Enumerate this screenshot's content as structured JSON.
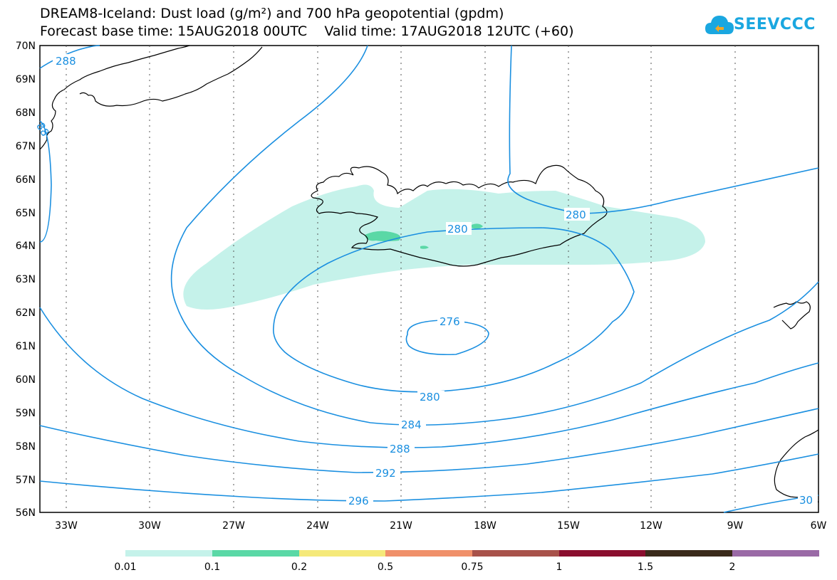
{
  "title": {
    "line1": "DREAM8-Iceland: Dust load (g/m²) and 700 hPa geopotential (gpdm)",
    "line2": "Forecast base time: 15AUG2018 00UTC    Valid time: 17AUG2018 12UTC (+60)"
  },
  "logo": {
    "text": "SEEVCCC",
    "icon": "cloud-icon"
  },
  "axes": {
    "lat_labels": [
      "70N",
      "69N",
      "68N",
      "67N",
      "66N",
      "65N",
      "64N",
      "63N",
      "62N",
      "61N",
      "60N",
      "59N",
      "58N",
      "57N",
      "56N"
    ],
    "lon_labels": [
      "33W",
      "30W",
      "27W",
      "24W",
      "21W",
      "18W",
      "15W",
      "12W",
      "9W",
      "6W"
    ]
  },
  "contour_labels": [
    "288",
    "88",
    "280",
    "280",
    "276",
    "280",
    "284",
    "288",
    "292",
    "296",
    "30"
  ],
  "colorbar": {
    "ticks": [
      "0.01",
      "0.1",
      "0.2",
      "0.5",
      "0.75",
      "1",
      "1.5",
      "2"
    ],
    "colors": [
      "#c5f2ea",
      "#5ad8a6",
      "#f5e97a",
      "#f0906a",
      "#a8524a",
      "#8a0e2e",
      "#3a2a1a",
      "#9a6aa6"
    ]
  },
  "colors": {
    "contour": "#1a8fe0",
    "dust_low": "#c5f2ea",
    "dust_mid": "#5ad8a6"
  }
}
